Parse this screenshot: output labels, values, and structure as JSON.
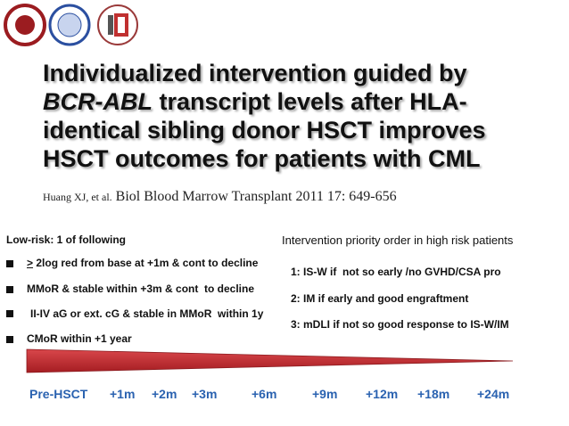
{
  "title": {
    "line1": "Individualized intervention guided by",
    "line2_italic": "BCR-ABL",
    "line2_rest": " transcript levels after HLA-",
    "line3": "identical sibling donor HSCT improves",
    "line4": "HSCT outcomes for patients with CML"
  },
  "citation": {
    "authors": "Huang XJ, et al.",
    "journal": "Biol Blood Marrow Transplant 2011 17: 649-656"
  },
  "low_risk": {
    "heading": "Low-risk: 1 of following",
    "first_symbol": ">",
    "items": [
      "2log red from base at +1m & cont to decline",
      "MMoR & stable within +3m & cont  to decline",
      "II-IV aG or ext. cG & stable in MMoR  within 1y",
      "CMoR within +1 year"
    ]
  },
  "high_risk": {
    "heading": "Intervention priority order in high risk patients",
    "items": [
      "1: IS-W if  not so early /no GVHD/CSA pro",
      "2: IM if early and good engraftment",
      "3: mDLI if not so good response to IS-W/IM"
    ]
  },
  "timeline": {
    "labels": [
      "Pre-HSCT",
      "+1m",
      "+2m",
      "+3m",
      "+6m",
      "+9m",
      "+12m",
      "+18m",
      "+24m"
    ]
  }
}
